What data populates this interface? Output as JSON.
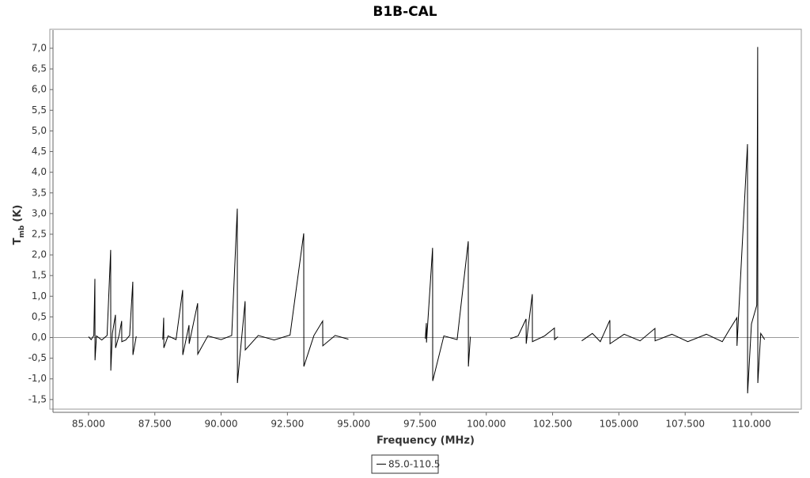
{
  "chart_data": {
    "type": "line",
    "title": "B1B-CAL",
    "x_label": "Frequency (MHz)",
    "y_label": "T",
    "y_label_sub": "mb",
    "y_label_unit": "(K)",
    "xlim": [
      83660,
      111790
    ],
    "ylim": [
      -1.79,
      7.44
    ],
    "xticks": [
      {
        "value": 85000,
        "label": "85.000"
      },
      {
        "value": 87500,
        "label": "87.500"
      },
      {
        "value": 90000,
        "label": "90.000"
      },
      {
        "value": 92500,
        "label": "92.500"
      },
      {
        "value": 95000,
        "label": "95.000"
      },
      {
        "value": 97500,
        "label": "97.500"
      },
      {
        "value": 100000,
        "label": "100.000"
      },
      {
        "value": 102500,
        "label": "102.500"
      },
      {
        "value": 105000,
        "label": "105.000"
      },
      {
        "value": 107500,
        "label": "107.500"
      },
      {
        "value": 110000,
        "label": "110.000"
      }
    ],
    "yticks": [
      {
        "value": -1.5,
        "label": "-1,5"
      },
      {
        "value": -1,
        "label": "-1,0"
      },
      {
        "value": -0.5,
        "label": "-0,5"
      },
      {
        "value": 0,
        "label": "0,0"
      },
      {
        "value": 0.5,
        "label": "0,5"
      },
      {
        "value": 1,
        "label": "1,0"
      },
      {
        "value": 1.5,
        "label": "1,5"
      },
      {
        "value": 2,
        "label": "2,0"
      },
      {
        "value": 2.5,
        "label": "2,5"
      },
      {
        "value": 3,
        "label": "3,0"
      },
      {
        "value": 3.5,
        "label": "3,5"
      },
      {
        "value": 4,
        "label": "4,0"
      },
      {
        "value": 4.5,
        "label": "4,5"
      },
      {
        "value": 5,
        "label": "5,0"
      },
      {
        "value": 5.5,
        "label": "5,5"
      },
      {
        "value": 6,
        "label": "6,0"
      },
      {
        "value": 6.5,
        "label": "6,5"
      },
      {
        "value": 7,
        "label": "7,0"
      }
    ],
    "x": [
      85000,
      85100,
      85200,
      85240,
      85245,
      85300,
      85500,
      85700,
      85835,
      85840,
      85900,
      86015,
      86020,
      86150,
      86250,
      86255,
      86400,
      86550,
      86670,
      86675,
      86800,
      87300,
      87800,
      87835,
      87840,
      88000,
      88300,
      88550,
      88555,
      88790,
      88795,
      89115,
      89120,
      89500,
      90000,
      90400,
      90610,
      90615,
      90905,
      90910,
      91400,
      92000,
      92600,
      93115,
      93120,
      93500,
      93830,
      93835,
      94300,
      94800,
      96000,
      97700,
      97740,
      97745,
      97975,
      97980,
      98400,
      98900,
      99320,
      99325,
      99400,
      100000,
      100900,
      101200,
      101500,
      101505,
      101735,
      101740,
      102200,
      102570,
      102575,
      102700,
      103000,
      103600,
      104000,
      104300,
      104660,
      104665,
      105200,
      105800,
      106360,
      106365,
      107000,
      107600,
      108300,
      108900,
      109150,
      109450,
      109455,
      109850,
      109855,
      110000,
      110200,
      110235,
      110240,
      110350,
      110500
    ],
    "series": [
      {
        "name": "85.0-110.5",
        "color": "#000000",
        "values": [
          0.02,
          -0.05,
          0.05,
          1.42,
          -0.55,
          0.04,
          -0.06,
          0.05,
          2.12,
          -0.8,
          0.1,
          0.55,
          -0.25,
          0.05,
          0.4,
          -0.1,
          -0.06,
          0.05,
          1.35,
          -0.42,
          0.03,
          null,
          -0.05,
          0.48,
          -0.25,
          0.04,
          -0.05,
          1.15,
          -0.42,
          0.3,
          -0.15,
          0.83,
          -0.4,
          0.04,
          -0.05,
          0.05,
          3.12,
          -1.1,
          0.88,
          -0.3,
          0.05,
          -0.06,
          0.06,
          2.52,
          -0.7,
          0.05,
          0.4,
          -0.2,
          0.05,
          -0.04,
          null,
          -0.03,
          0.35,
          -0.12,
          2.17,
          -1.05,
          0.04,
          -0.05,
          2.33,
          -0.7,
          0.02,
          null,
          -0.03,
          0.04,
          0.45,
          -0.15,
          1.05,
          -0.1,
          0.04,
          0.23,
          -0.05,
          0.02,
          null,
          -0.08,
          0.1,
          -0.1,
          0.42,
          -0.15,
          0.08,
          -0.08,
          0.22,
          -0.08,
          0.08,
          -0.1,
          0.08,
          -0.1,
          0.17,
          0.48,
          -0.2,
          4.68,
          -1.35,
          0.33,
          0.78,
          7.03,
          -1.1,
          0.1,
          -0.05
        ]
      }
    ]
  }
}
